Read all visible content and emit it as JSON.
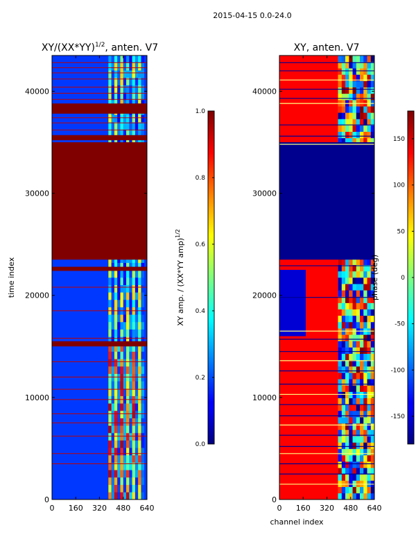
{
  "figure": {
    "suptitle": "2015-04-15 0.0-24.0"
  },
  "chart_data": [
    {
      "type": "heatmap",
      "title_main": "XY/(XX*YY)",
      "title_exp": "1/2",
      "title_rest": ", anten. V7",
      "xlabel": "",
      "ylabel": "time index",
      "xlim": [
        0,
        640
      ],
      "ylim": [
        0,
        43500
      ],
      "xticks": [
        0,
        160,
        320,
        480,
        640
      ],
      "yticks": [
        0,
        10000,
        20000,
        30000,
        40000
      ],
      "colormap": "jet",
      "colorbar": {
        "label_main": "XY amp. / (XX*YY amp)",
        "label_exp": "1/2",
        "range": [
          0.0,
          1.0
        ],
        "ticks": [
          "0.0",
          "0.2",
          "0.4",
          "0.6",
          "0.8",
          "1.0"
        ]
      },
      "base_value": 0.18,
      "saturated_bands": [
        [
          15000,
          15500
        ],
        [
          22400,
          22800
        ],
        [
          23500,
          35000
        ],
        [
          35200,
          35700
        ],
        [
          37800,
          38800
        ]
      ],
      "bright_channel_range": [
        380,
        620
      ],
      "line_rows": [
        3500,
        4500,
        6200,
        7500,
        8400,
        9800,
        10800,
        12000,
        13500,
        15800,
        18500,
        20800,
        36200,
        36900,
        37400,
        39200,
        39800,
        40400,
        41200,
        41800,
        42300,
        42800
      ]
    },
    {
      "type": "heatmap",
      "title": "XY, anten. V7",
      "xlabel": "channel index",
      "ylabel": "",
      "xlim": [
        0,
        640
      ],
      "ylim": [
        0,
        43500
      ],
      "xticks": [
        0,
        160,
        320,
        480,
        640
      ],
      "yticks": [
        0,
        10000,
        20000,
        30000,
        40000
      ],
      "colormap": "jet",
      "colorbar": {
        "label": "phase (deg)",
        "range": [
          -180,
          180
        ],
        "ticks": [
          "-150",
          "-100",
          "-50",
          "0",
          "50",
          "100",
          "150"
        ]
      },
      "blue_band": [
        23500,
        35000
      ],
      "split_channel": 395,
      "line_rows": [
        1500,
        2500,
        3500,
        4500,
        5200,
        6300,
        7300,
        8200,
        9300,
        10300,
        11300,
        12600,
        13600,
        14500,
        15700,
        16500,
        19800,
        22900,
        34800,
        35600,
        36700,
        38800,
        39300,
        40200,
        41100,
        42000,
        42800
      ]
    }
  ]
}
